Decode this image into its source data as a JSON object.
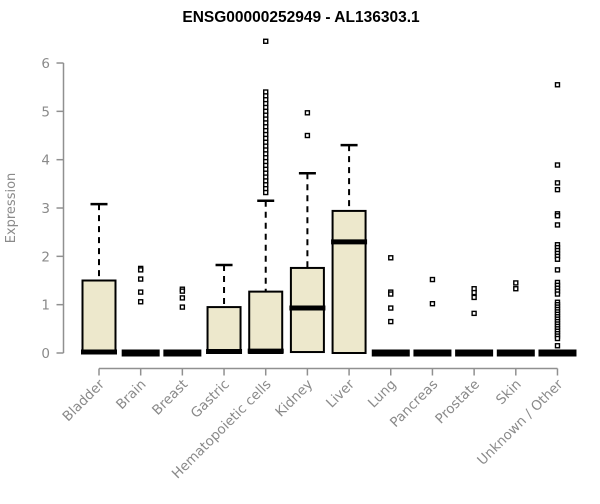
{
  "title": "ENSG00000252949 - AL136303.1",
  "colors": {
    "box_fill": "#ede8cc",
    "box_stroke": "#000000",
    "axis": "#909090",
    "tick_label": "#8a8a8a",
    "title": "#000000",
    "background": "#ffffff"
  },
  "chart_data": {
    "type": "boxplot",
    "title": "ENSG00000252949 - AL136303.1",
    "xlabel": "",
    "ylabel": "Expression",
    "ylim": [
      0,
      6
    ],
    "yticks": [
      0,
      1,
      2,
      3,
      4,
      5,
      6
    ],
    "grid": false,
    "legend": "none",
    "categories": [
      "Bladder",
      "Brain",
      "Breast",
      "Gastric",
      "Hematopoietic cells",
      "Kidney",
      "Liver",
      "Lung",
      "Pancreas",
      "Prostate",
      "Skin",
      "Unknown / Other"
    ],
    "series": [
      {
        "name": "Bladder",
        "whisker_low": 0,
        "q1": 0,
        "median": 0.02,
        "q3": 1.5,
        "whisker_high": 3.08,
        "outliers": []
      },
      {
        "name": "Brain",
        "whisker_low": 0,
        "q1": 0,
        "median": 0,
        "q3": 0,
        "whisker_high": 0,
        "outliers": [
          1.75,
          1.72,
          1.53,
          1.26,
          1.06
        ]
      },
      {
        "name": "Breast",
        "whisker_low": 0,
        "q1": 0,
        "median": 0,
        "q3": 0,
        "whisker_high": 0,
        "outliers": [
          1.32,
          1.28,
          1.14,
          0.95
        ]
      },
      {
        "name": "Gastric",
        "whisker_low": 0,
        "q1": 0,
        "median": 0.03,
        "q3": 0.95,
        "whisker_high": 1.82,
        "outliers": []
      },
      {
        "name": "Hematopoietic cells",
        "whisker_low": 0,
        "q1": 0,
        "median": 0.04,
        "q3": 1.27,
        "whisker_high": 3.15,
        "outliers": [
          6.45,
          5.4,
          5.32,
          5.24,
          5.16,
          5.08,
          5.0,
          4.92,
          4.84,
          4.76,
          4.68,
          4.6,
          4.52,
          4.44,
          4.36,
          4.28,
          4.2,
          4.12,
          4.04,
          3.96,
          3.88,
          3.8,
          3.72,
          3.64,
          3.56,
          3.48,
          3.4,
          3.32
        ]
      },
      {
        "name": "Kidney",
        "whisker_low": 0.02,
        "q1": 0.02,
        "median": 0.93,
        "q3": 1.76,
        "whisker_high": 3.72,
        "outliers": [
          4.97,
          4.5
        ]
      },
      {
        "name": "Liver",
        "whisker_low": 0,
        "q1": 0,
        "median": 2.3,
        "q3": 2.94,
        "whisker_high": 4.3,
        "outliers": []
      },
      {
        "name": "Lung",
        "whisker_low": 0,
        "q1": 0,
        "median": 0,
        "q3": 0,
        "whisker_high": 0,
        "outliers": [
          1.97,
          1.26,
          1.22,
          0.93,
          0.65
        ]
      },
      {
        "name": "Pancreas",
        "whisker_low": 0,
        "q1": 0,
        "median": 0,
        "q3": 0,
        "whisker_high": 0,
        "outliers": [
          1.52,
          1.02
        ]
      },
      {
        "name": "Prostate",
        "whisker_low": 0,
        "q1": 0,
        "median": 0,
        "q3": 0,
        "whisker_high": 0,
        "outliers": [
          1.33,
          1.25,
          1.15,
          0.82
        ]
      },
      {
        "name": "Skin",
        "whisker_low": 0,
        "q1": 0,
        "median": 0,
        "q3": 0,
        "whisker_high": 0,
        "outliers": [
          1.45,
          1.33
        ]
      },
      {
        "name": "Unknown / Other",
        "whisker_low": 0,
        "q1": 0,
        "median": 0,
        "q3": 0,
        "whisker_high": 0,
        "outliers": [
          5.55,
          3.89,
          3.52,
          3.38,
          2.88,
          2.84,
          2.65,
          2.24,
          2.18,
          2.12,
          2.06,
          2.0,
          1.94,
          1.72,
          1.46,
          1.4,
          1.34,
          1.28,
          1.22,
          1.05,
          1.0,
          0.95,
          0.9,
          0.85,
          0.8,
          0.75,
          0.7,
          0.65,
          0.6,
          0.55,
          0.5,
          0.45,
          0.4,
          0.35,
          0.3,
          0.15
        ]
      }
    ]
  }
}
